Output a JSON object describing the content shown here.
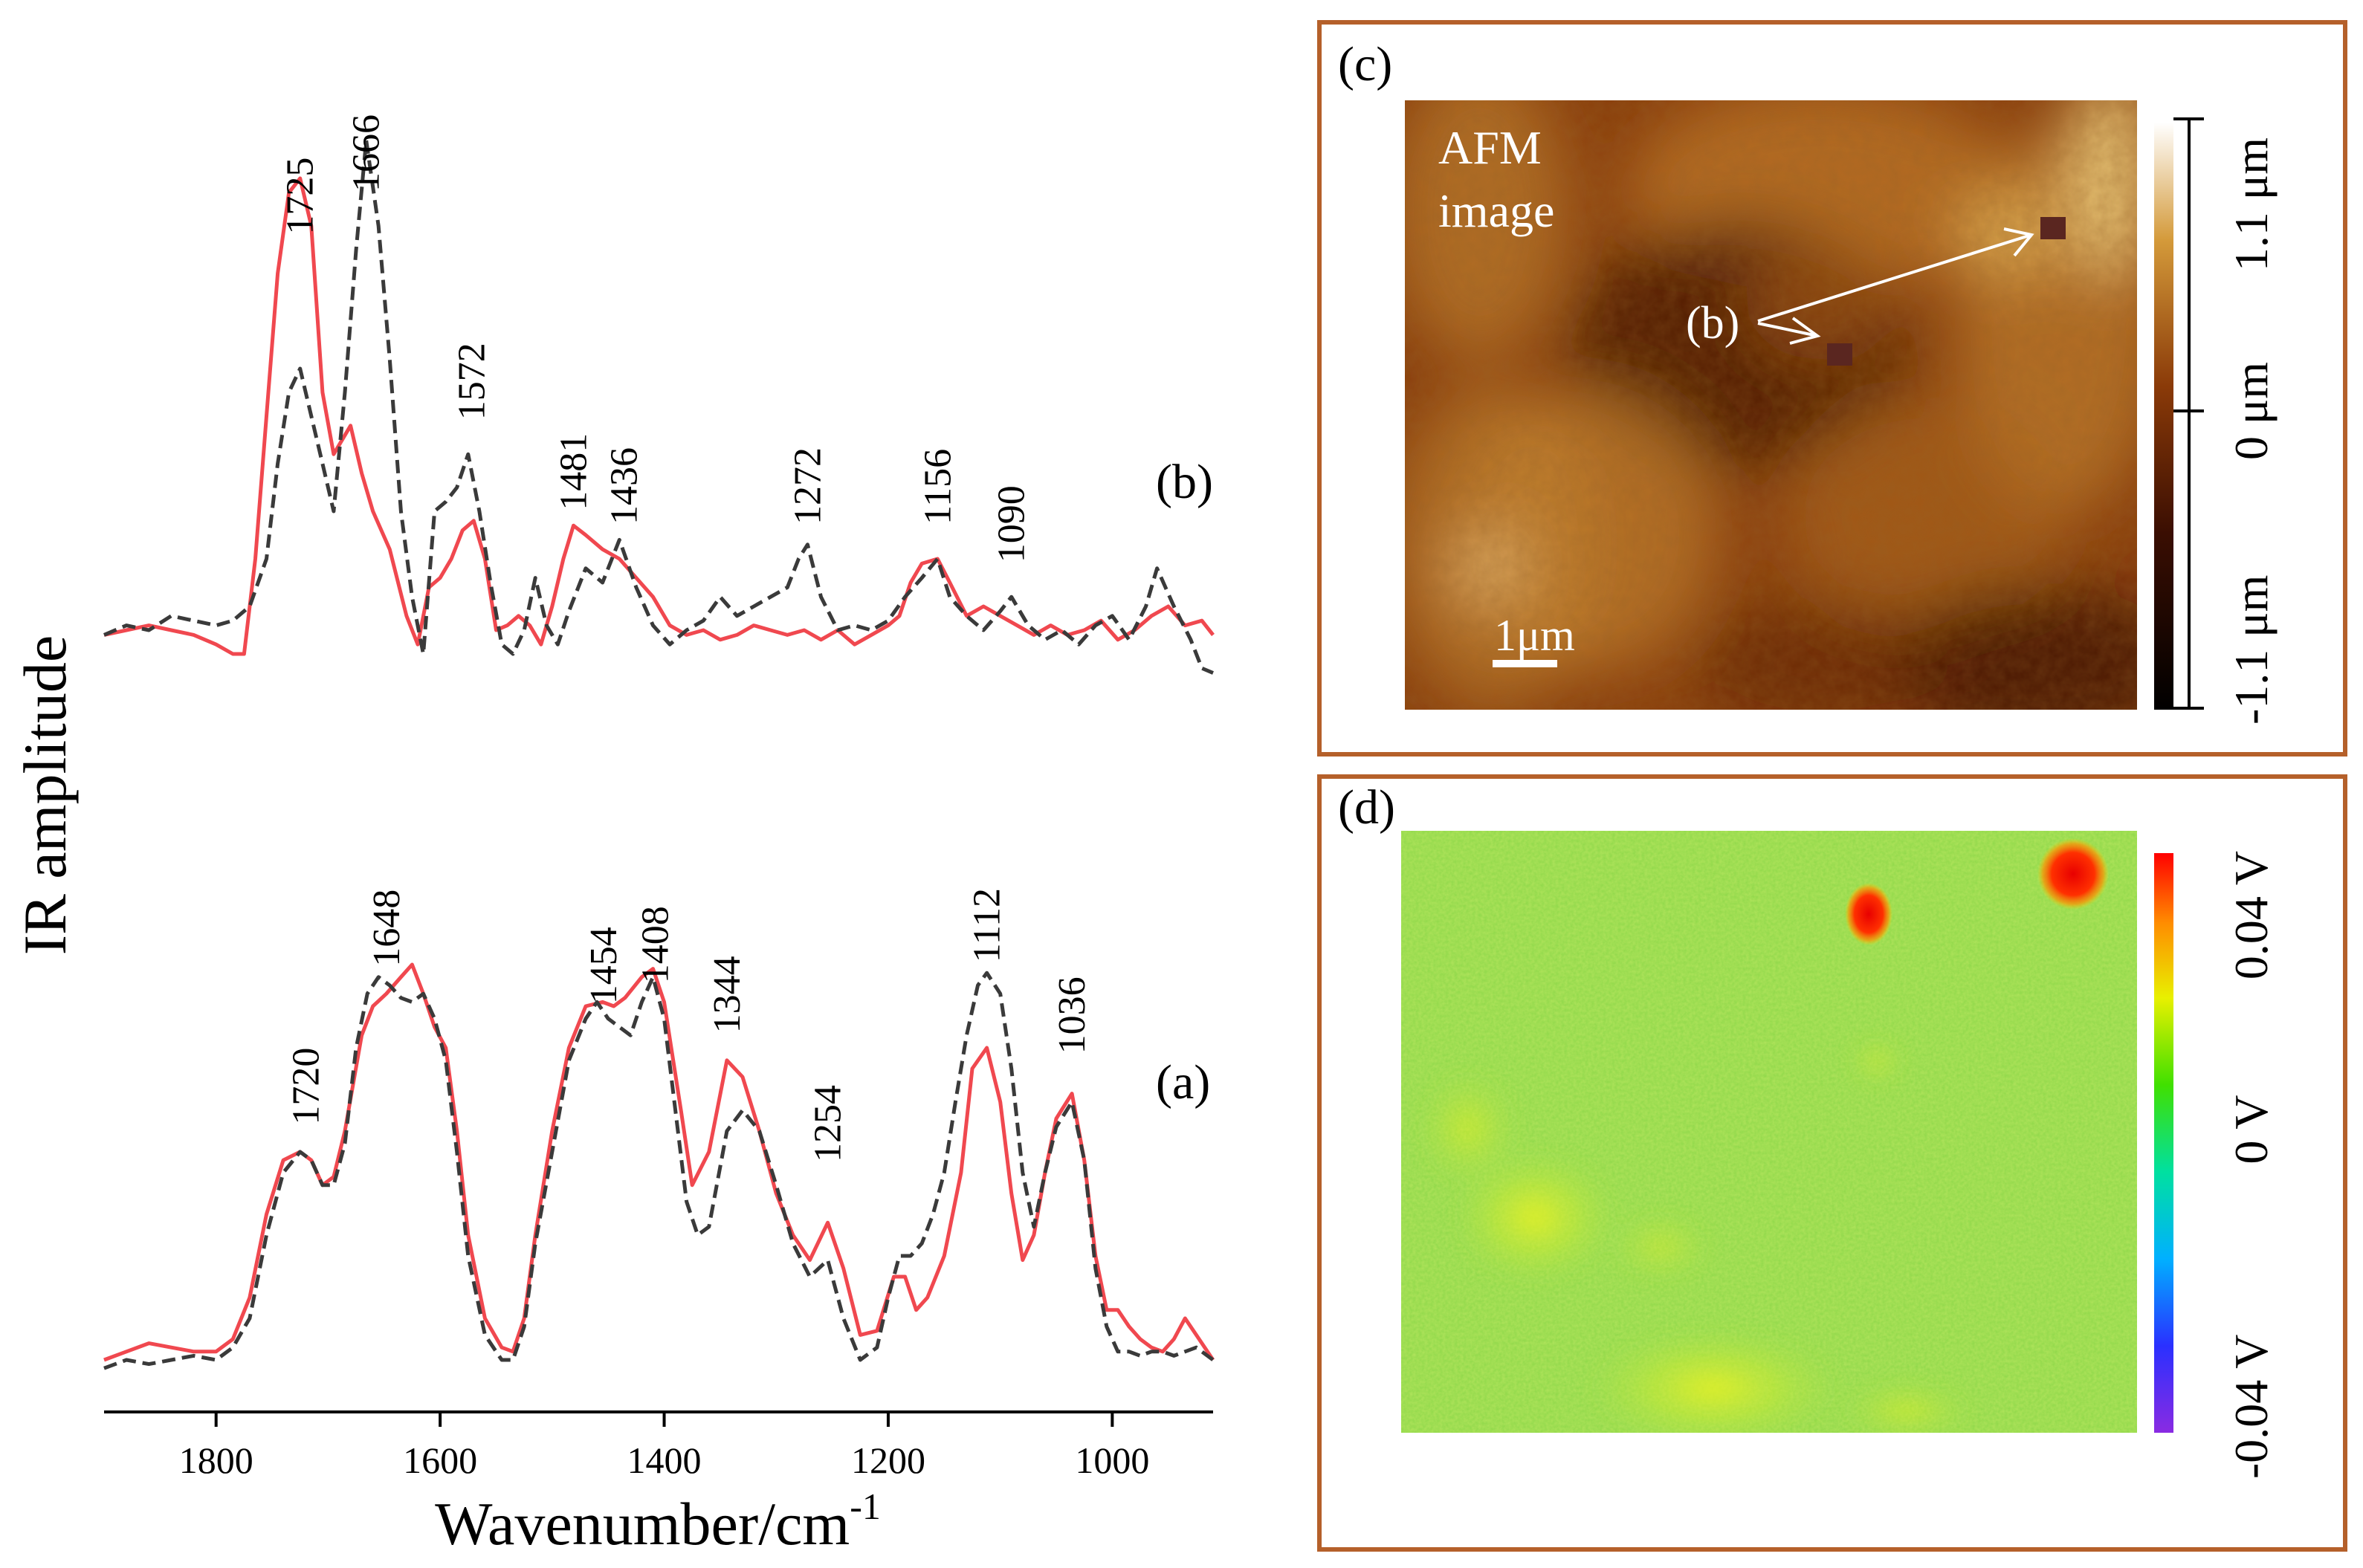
{
  "colors": {
    "red_series": "#f0484f",
    "dark_series": "#3a3a3a",
    "panel_border": "#b5602a",
    "afm_dark": "#4a1b05",
    "afm_mid": "#9b4a12",
    "afm_light": "#d9a040",
    "kpfm_green": "#8fdc4a"
  },
  "chart_data": [
    {
      "type": "line",
      "title": "",
      "xlabel": "Wavenumber/cm",
      "xlabel_sup": "-1",
      "ylabel": "IR amplitude",
      "xlim": [
        1900,
        910
      ],
      "x_ticks": [
        1800,
        1600,
        1400,
        1200,
        1000
      ],
      "x_tick_labels": [
        "1800",
        "1600",
        "1400",
        "1200",
        "1000"
      ],
      "panels": [
        {
          "label": "(b)",
          "ylim": [
            0,
            1
          ],
          "peak_labels": [
            {
              "text": "1725",
              "x": 1725,
              "y": 0.86
            },
            {
              "text": "1666",
              "x": 1666,
              "y": 0.95
            },
            {
              "text": "1572",
              "x": 1572,
              "y": 0.47
            },
            {
              "text": "1481",
              "x": 1481,
              "y": 0.28
            },
            {
              "text": "1436",
              "x": 1436,
              "y": 0.25
            },
            {
              "text": "1272",
              "x": 1272,
              "y": 0.25
            },
            {
              "text": "1156",
              "x": 1156,
              "y": 0.25
            },
            {
              "text": "1090",
              "x": 1090,
              "y": 0.17
            }
          ],
          "series": [
            {
              "name": "red",
              "x": [
                1900,
                1880,
                1860,
                1840,
                1820,
                1800,
                1785,
                1775,
                1765,
                1755,
                1745,
                1735,
                1725,
                1715,
                1705,
                1695,
                1680,
                1670,
                1660,
                1645,
                1630,
                1620,
                1610,
                1600,
                1590,
                1580,
                1570,
                1560,
                1550,
                1540,
                1530,
                1520,
                1510,
                1500,
                1490,
                1481,
                1470,
                1455,
                1440,
                1425,
                1410,
                1395,
                1380,
                1365,
                1350,
                1335,
                1320,
                1305,
                1290,
                1275,
                1260,
                1245,
                1230,
                1215,
                1200,
                1190,
                1180,
                1170,
                1156,
                1145,
                1130,
                1115,
                1100,
                1085,
                1070,
                1055,
                1040,
                1025,
                1010,
                995,
                980,
                965,
                950,
                935,
                920,
                910
              ],
              "y": [
                0.04,
                0.05,
                0.06,
                0.05,
                0.04,
                0.02,
                0.0,
                0.0,
                0.2,
                0.5,
                0.8,
                0.97,
                1.0,
                0.9,
                0.55,
                0.42,
                0.48,
                0.38,
                0.3,
                0.22,
                0.08,
                0.02,
                0.14,
                0.16,
                0.2,
                0.26,
                0.28,
                0.2,
                0.05,
                0.06,
                0.08,
                0.06,
                0.02,
                0.1,
                0.2,
                0.27,
                0.25,
                0.22,
                0.2,
                0.16,
                0.12,
                0.06,
                0.04,
                0.05,
                0.03,
                0.04,
                0.06,
                0.05,
                0.04,
                0.05,
                0.03,
                0.05,
                0.02,
                0.04,
                0.06,
                0.08,
                0.15,
                0.19,
                0.2,
                0.15,
                0.08,
                0.1,
                0.08,
                0.06,
                0.04,
                0.06,
                0.04,
                0.05,
                0.07,
                0.03,
                0.05,
                0.08,
                0.1,
                0.06,
                0.07,
                0.04
              ]
            },
            {
              "name": "dark dashed",
              "x": [
                1900,
                1880,
                1860,
                1840,
                1820,
                1800,
                1785,
                1770,
                1755,
                1745,
                1735,
                1725,
                1715,
                1705,
                1695,
                1685,
                1675,
                1666,
                1655,
                1645,
                1635,
                1625,
                1615,
                1605,
                1595,
                1585,
                1575,
                1565,
                1555,
                1545,
                1535,
                1525,
                1515,
                1505,
                1495,
                1485,
                1470,
                1455,
                1440,
                1425,
                1410,
                1395,
                1380,
                1365,
                1350,
                1335,
                1320,
                1305,
                1290,
                1280,
                1272,
                1260,
                1245,
                1230,
                1215,
                1200,
                1185,
                1170,
                1156,
                1145,
                1130,
                1115,
                1100,
                1090,
                1075,
                1060,
                1045,
                1030,
                1015,
                1000,
                985,
                970,
                960,
                945,
                930,
                920,
                910
              ],
              "y": [
                0.04,
                0.06,
                0.05,
                0.08,
                0.07,
                0.06,
                0.07,
                0.1,
                0.2,
                0.4,
                0.55,
                0.6,
                0.5,
                0.4,
                0.3,
                0.55,
                0.85,
                1.08,
                0.9,
                0.62,
                0.3,
                0.12,
                0.0,
                0.3,
                0.32,
                0.35,
                0.42,
                0.3,
                0.15,
                0.02,
                0.0,
                0.05,
                0.16,
                0.06,
                0.02,
                0.09,
                0.18,
                0.15,
                0.24,
                0.14,
                0.06,
                0.02,
                0.05,
                0.07,
                0.12,
                0.08,
                0.1,
                0.12,
                0.14,
                0.2,
                0.23,
                0.12,
                0.05,
                0.06,
                0.05,
                0.07,
                0.12,
                0.16,
                0.2,
                0.12,
                0.08,
                0.05,
                0.09,
                0.12,
                0.06,
                0.03,
                0.05,
                0.02,
                0.06,
                0.08,
                0.03,
                0.1,
                0.18,
                0.1,
                0.03,
                -0.03,
                -0.04
              ]
            }
          ]
        },
        {
          "label": "(a)",
          "ylim": [
            0,
            1
          ],
          "peak_labels": [
            {
              "text": "1720",
              "x": 1720,
              "y": 0.54
            },
            {
              "text": "1648",
              "x": 1648,
              "y": 0.92
            },
            {
              "text": "1454",
              "x": 1454,
              "y": 0.83
            },
            {
              "text": "1408",
              "x": 1408,
              "y": 0.88
            },
            {
              "text": "1344",
              "x": 1344,
              "y": 0.76
            },
            {
              "text": "1254",
              "x": 1254,
              "y": 0.45
            },
            {
              "text": "1112",
              "x": 1112,
              "y": 0.93
            },
            {
              "text": "1036",
              "x": 1036,
              "y": 0.71
            }
          ],
          "series": [
            {
              "name": "red",
              "x": [
                1900,
                1880,
                1860,
                1840,
                1820,
                1800,
                1785,
                1770,
                1755,
                1740,
                1725,
                1715,
                1705,
                1695,
                1685,
                1670,
                1660,
                1648,
                1635,
                1625,
                1615,
                1605,
                1595,
                1585,
                1575,
                1560,
                1545,
                1535,
                1525,
                1515,
                1500,
                1485,
                1470,
                1455,
                1445,
                1435,
                1420,
                1410,
                1400,
                1385,
                1375,
                1360,
                1344,
                1330,
                1315,
                1300,
                1285,
                1270,
                1254,
                1240,
                1225,
                1210,
                1195,
                1185,
                1175,
                1165,
                1150,
                1135,
                1125,
                1112,
                1100,
                1090,
                1080,
                1070,
                1060,
                1050,
                1036,
                1025,
                1015,
                1005,
                995,
                985,
                975,
                965,
                955,
                945,
                935,
                925,
                910
              ],
              "y": [
                0.0,
                0.02,
                0.04,
                0.03,
                0.02,
                0.02,
                0.05,
                0.15,
                0.35,
                0.48,
                0.5,
                0.48,
                0.42,
                0.44,
                0.55,
                0.78,
                0.85,
                0.88,
                0.92,
                0.95,
                0.88,
                0.8,
                0.75,
                0.55,
                0.3,
                0.1,
                0.03,
                0.02,
                0.1,
                0.3,
                0.55,
                0.75,
                0.85,
                0.86,
                0.85,
                0.87,
                0.92,
                0.94,
                0.86,
                0.6,
                0.42,
                0.5,
                0.72,
                0.68,
                0.55,
                0.4,
                0.3,
                0.24,
                0.33,
                0.22,
                0.06,
                0.07,
                0.2,
                0.2,
                0.12,
                0.15,
                0.25,
                0.45,
                0.7,
                0.75,
                0.62,
                0.4,
                0.24,
                0.3,
                0.45,
                0.58,
                0.64,
                0.48,
                0.25,
                0.12,
                0.12,
                0.08,
                0.05,
                0.03,
                0.02,
                0.05,
                0.1,
                0.06,
                0.0
              ]
            },
            {
              "name": "dark dashed",
              "x": [
                1900,
                1880,
                1860,
                1840,
                1820,
                1800,
                1785,
                1770,
                1755,
                1740,
                1725,
                1715,
                1705,
                1695,
                1685,
                1675,
                1665,
                1655,
                1645,
                1635,
                1625,
                1615,
                1605,
                1595,
                1585,
                1575,
                1560,
                1545,
                1535,
                1525,
                1515,
                1500,
                1485,
                1470,
                1460,
                1450,
                1440,
                1430,
                1420,
                1410,
                1400,
                1390,
                1380,
                1370,
                1360,
                1344,
                1330,
                1315,
                1300,
                1285,
                1270,
                1254,
                1240,
                1225,
                1210,
                1200,
                1190,
                1180,
                1170,
                1160,
                1150,
                1140,
                1130,
                1120,
                1112,
                1100,
                1090,
                1080,
                1070,
                1060,
                1050,
                1036,
                1025,
                1015,
                1005,
                995,
                985,
                975,
                965,
                955,
                945,
                935,
                925,
                910
              ],
              "y": [
                -0.02,
                0.0,
                -0.01,
                0.0,
                0.01,
                0.0,
                0.03,
                0.1,
                0.3,
                0.45,
                0.5,
                0.48,
                0.42,
                0.42,
                0.52,
                0.75,
                0.88,
                0.92,
                0.9,
                0.87,
                0.86,
                0.88,
                0.82,
                0.72,
                0.5,
                0.25,
                0.06,
                0.0,
                0.0,
                0.08,
                0.28,
                0.5,
                0.72,
                0.82,
                0.86,
                0.82,
                0.8,
                0.78,
                0.86,
                0.92,
                0.82,
                0.6,
                0.38,
                0.3,
                0.32,
                0.55,
                0.6,
                0.55,
                0.42,
                0.28,
                0.2,
                0.24,
                0.1,
                0.0,
                0.03,
                0.15,
                0.25,
                0.25,
                0.28,
                0.35,
                0.45,
                0.62,
                0.78,
                0.9,
                0.93,
                0.88,
                0.7,
                0.45,
                0.32,
                0.45,
                0.56,
                0.62,
                0.48,
                0.22,
                0.08,
                0.02,
                0.02,
                0.01,
                0.02,
                0.02,
                0.01,
                0.02,
                0.03,
                0.0
              ]
            }
          ]
        }
      ]
    },
    {
      "type": "heatmap",
      "panel_label": "(c)",
      "image_text": [
        "AFM",
        "image"
      ],
      "scale_bar_label": "1μm",
      "marker_label": "(b)",
      "colorbar": {
        "labels": [
          "1.1 μm",
          "0 μm",
          "-1.1 μm"
        ],
        "range_um": [
          -1.1,
          1.1
        ]
      }
    },
    {
      "type": "heatmap",
      "panel_label": "(d)",
      "colorbar": {
        "labels": [
          "0.04 V",
          "0 V",
          "-0.04 V"
        ],
        "range_V": [
          -0.04,
          0.04
        ]
      }
    }
  ]
}
